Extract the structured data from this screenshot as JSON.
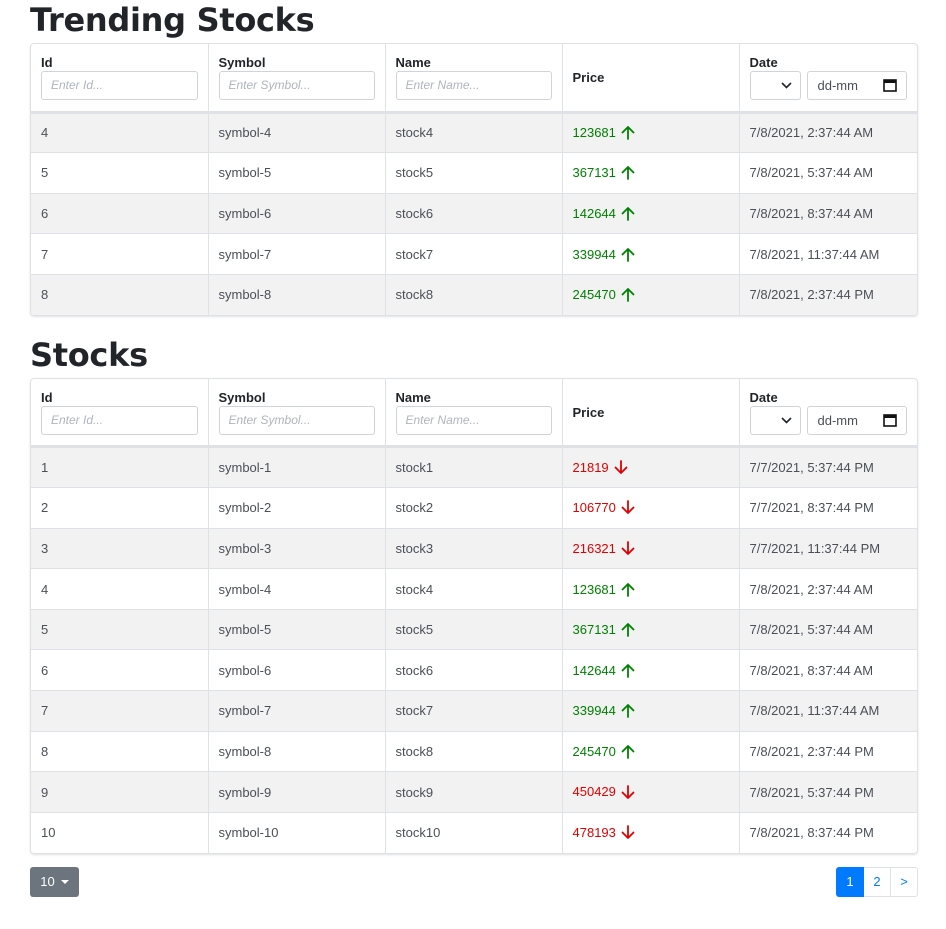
{
  "trending": {
    "title": "Trending Stocks",
    "columns": {
      "id": "Id",
      "symbol": "Symbol",
      "name": "Name",
      "price": "Price",
      "date": "Date"
    },
    "placeholders": {
      "id": "Enter Id...",
      "symbol": "Enter Symbol...",
      "name": "Enter Name..."
    },
    "date_input_text": "dd-mm",
    "rows": [
      {
        "id": "4",
        "symbol": "symbol-4",
        "name": "stock4",
        "price": "123681",
        "trend": "up",
        "date": "7/8/2021, 2:37:44 AM"
      },
      {
        "id": "5",
        "symbol": "symbol-5",
        "name": "stock5",
        "price": "367131",
        "trend": "up",
        "date": "7/8/2021, 5:37:44 AM"
      },
      {
        "id": "6",
        "symbol": "symbol-6",
        "name": "stock6",
        "price": "142644",
        "trend": "up",
        "date": "7/8/2021, 8:37:44 AM"
      },
      {
        "id": "7",
        "symbol": "symbol-7",
        "name": "stock7",
        "price": "339944",
        "trend": "up",
        "date": "7/8/2021, 11:37:44 AM"
      },
      {
        "id": "8",
        "symbol": "symbol-8",
        "name": "stock8",
        "price": "245470",
        "trend": "up",
        "date": "7/8/2021, 2:37:44 PM"
      }
    ]
  },
  "stocks": {
    "title": "Stocks",
    "columns": {
      "id": "Id",
      "symbol": "Symbol",
      "name": "Name",
      "price": "Price",
      "date": "Date"
    },
    "placeholders": {
      "id": "Enter Id...",
      "symbol": "Enter Symbol...",
      "name": "Enter Name..."
    },
    "date_input_text": "dd-mm",
    "rows": [
      {
        "id": "1",
        "symbol": "symbol-1",
        "name": "stock1",
        "price": "21819",
        "trend": "down",
        "date": "7/7/2021, 5:37:44 PM"
      },
      {
        "id": "2",
        "symbol": "symbol-2",
        "name": "stock2",
        "price": "106770",
        "trend": "down",
        "date": "7/7/2021, 8:37:44 PM"
      },
      {
        "id": "3",
        "symbol": "symbol-3",
        "name": "stock3",
        "price": "216321",
        "trend": "down",
        "date": "7/7/2021, 11:37:44 PM"
      },
      {
        "id": "4",
        "symbol": "symbol-4",
        "name": "stock4",
        "price": "123681",
        "trend": "up",
        "date": "7/8/2021, 2:37:44 AM"
      },
      {
        "id": "5",
        "symbol": "symbol-5",
        "name": "stock5",
        "price": "367131",
        "trend": "up",
        "date": "7/8/2021, 5:37:44 AM"
      },
      {
        "id": "6",
        "symbol": "symbol-6",
        "name": "stock6",
        "price": "142644",
        "trend": "up",
        "date": "7/8/2021, 8:37:44 AM"
      },
      {
        "id": "7",
        "symbol": "symbol-7",
        "name": "stock7",
        "price": "339944",
        "trend": "up",
        "date": "7/8/2021, 11:37:44 AM"
      },
      {
        "id": "8",
        "symbol": "symbol-8",
        "name": "stock8",
        "price": "245470",
        "trend": "up",
        "date": "7/8/2021, 2:37:44 PM"
      },
      {
        "id": "9",
        "symbol": "symbol-9",
        "name": "stock9",
        "price": "450429",
        "trend": "down",
        "date": "7/8/2021, 5:37:44 PM"
      },
      {
        "id": "10",
        "symbol": "symbol-10",
        "name": "stock10",
        "price": "478193",
        "trend": "down",
        "date": "7/8/2021, 8:37:44 PM"
      }
    ]
  },
  "pagination": {
    "page_size": "10",
    "pages": [
      "1",
      "2"
    ],
    "active_page": "1",
    "next_label": ">"
  },
  "colors": {
    "up": "#008000",
    "down": "#e00000",
    "accent": "#007bff",
    "size_button": "#6c757d"
  },
  "icons": {
    "up": "arrow-up-icon",
    "down": "arrow-down-icon",
    "calendar": "calendar-icon",
    "select": "chevron-down-icon"
  }
}
